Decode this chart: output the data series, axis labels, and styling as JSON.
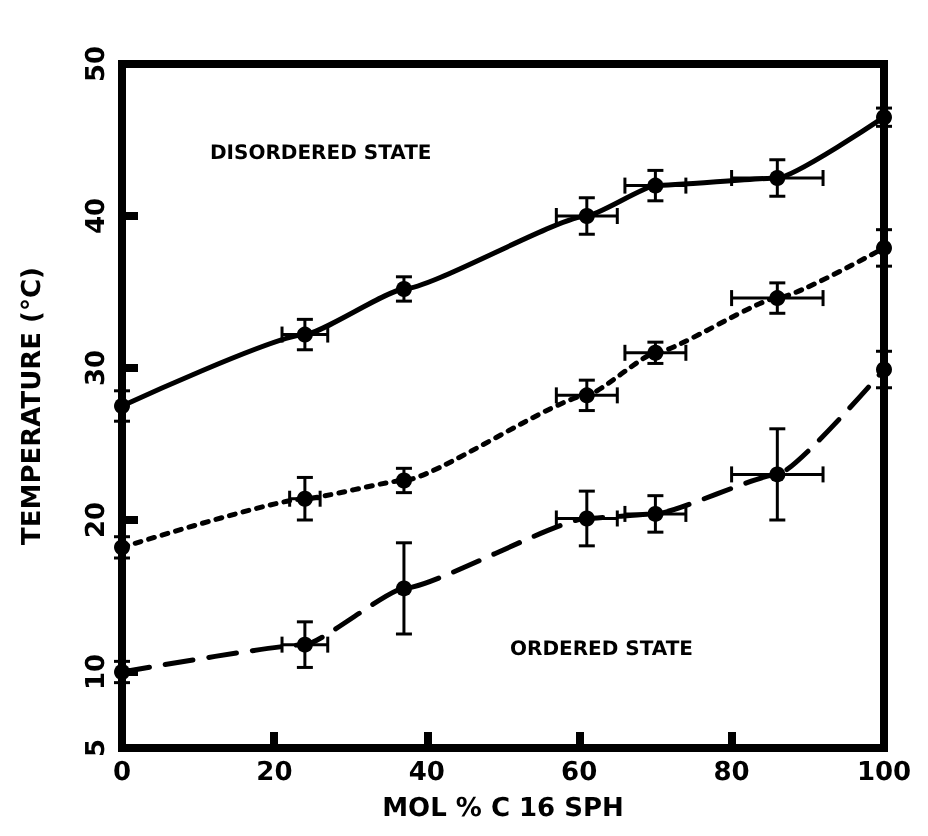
{
  "chart_data": {
    "type": "line",
    "xlabel": "MOL % C 16 SPH",
    "ylabel": "TEMPERATURE (°C)",
    "x": [
      0,
      24,
      37,
      61,
      70,
      86,
      100
    ],
    "series": [
      {
        "color": "#000000",
        "line_style": "solid",
        "values": [
          27.5,
          32.2,
          35.2,
          40,
          42,
          42.5,
          46.5
        ],
        "errors": [
          1,
          1,
          0.8,
          1.2,
          1,
          1.2,
          0.6
        ],
        "xerrors": [
          null,
          3,
          null,
          4,
          4,
          6,
          null
        ]
      },
      {
        "color": "#000000",
        "line_style": "dotted",
        "values": [
          18.2,
          21.4,
          22.6,
          28.2,
          31,
          34.6,
          37.9
        ],
        "errors": [
          0.7,
          1.4,
          0.8,
          1,
          0.7,
          1,
          1.2
        ],
        "xerrors": [
          null,
          2,
          null,
          4,
          4,
          6,
          null
        ]
      },
      {
        "color": "#000000",
        "line_style": "dashed",
        "values": [
          10,
          11.8,
          15.5,
          20.1,
          20.4,
          23,
          29.9
        ],
        "errors": [
          0.7,
          1.5,
          3,
          1.8,
          1.2,
          3,
          1.2
        ],
        "xerrors": [
          null,
          3,
          null,
          4,
          4,
          6,
          null
        ]
      }
    ],
    "xlim": [
      0,
      100
    ],
    "xticks": [
      0,
      20,
      40,
      60,
      80,
      100
    ],
    "ylim": [
      5,
      50
    ],
    "yticks": [
      5,
      10,
      20,
      30,
      40,
      50
    ],
    "marker": "circle",
    "grid": false,
    "annotations": [
      "DISORDERED STATE",
      "ORDERED STATE"
    ]
  }
}
